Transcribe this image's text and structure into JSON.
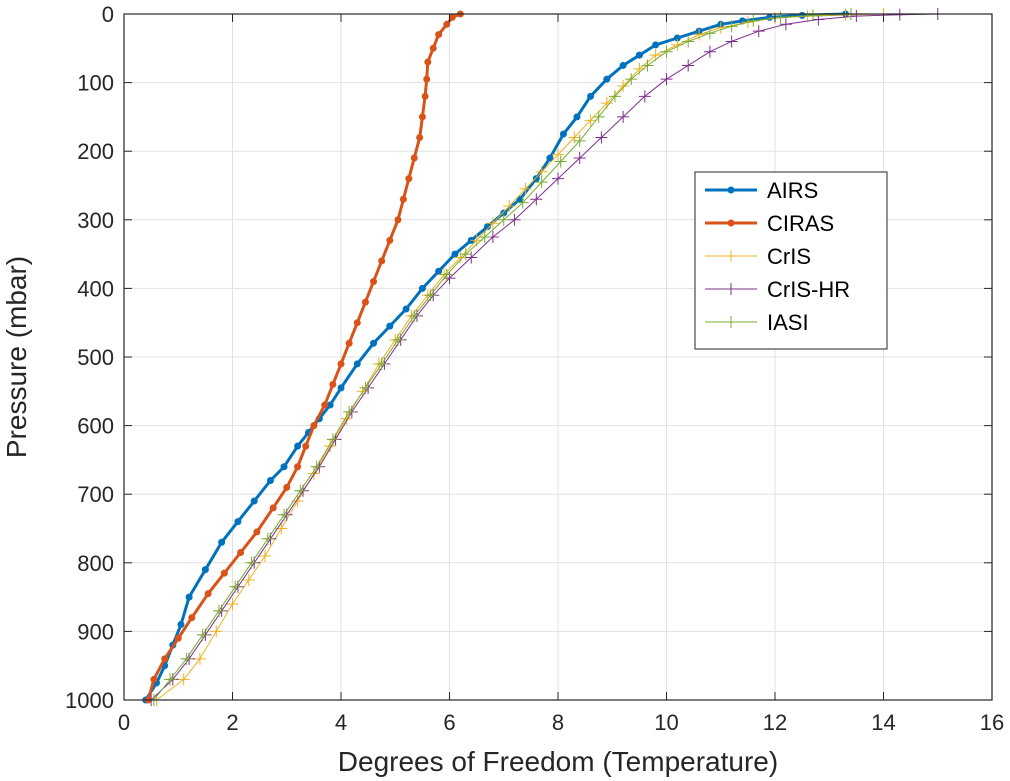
{
  "chart_data": {
    "type": "line",
    "xlabel": "Degrees of Freedom (Temperature)",
    "ylabel": "Pressure (mbar)",
    "xlim": [
      0,
      16
    ],
    "ylim": [
      0,
      1000
    ],
    "y_reversed": true,
    "xticks": [
      0,
      2,
      4,
      6,
      8,
      10,
      12,
      14,
      16
    ],
    "yticks": [
      0,
      100,
      200,
      300,
      400,
      500,
      600,
      700,
      800,
      900,
      1000
    ],
    "grid": true,
    "legend_position": "right",
    "series": [
      {
        "name": "AIRS",
        "color": "#0072BD",
        "marker": "dot",
        "points": [
          [
            0.4,
            1000
          ],
          [
            0.6,
            975
          ],
          [
            0.75,
            950
          ],
          [
            0.9,
            920
          ],
          [
            1.05,
            890
          ],
          [
            1.2,
            850
          ],
          [
            1.5,
            810
          ],
          [
            1.8,
            770
          ],
          [
            2.1,
            740
          ],
          [
            2.4,
            710
          ],
          [
            2.7,
            680
          ],
          [
            2.95,
            660
          ],
          [
            3.2,
            630
          ],
          [
            3.4,
            610
          ],
          [
            3.6,
            590
          ],
          [
            3.8,
            570
          ],
          [
            4.0,
            545
          ],
          [
            4.3,
            510
          ],
          [
            4.6,
            480
          ],
          [
            4.9,
            455
          ],
          [
            5.2,
            430
          ],
          [
            5.5,
            400
          ],
          [
            5.8,
            375
          ],
          [
            6.1,
            350
          ],
          [
            6.4,
            330
          ],
          [
            6.7,
            310
          ],
          [
            7.0,
            290
          ],
          [
            7.3,
            270
          ],
          [
            7.6,
            240
          ],
          [
            7.85,
            210
          ],
          [
            8.1,
            175
          ],
          [
            8.35,
            150
          ],
          [
            8.6,
            120
          ],
          [
            8.9,
            95
          ],
          [
            9.2,
            75
          ],
          [
            9.5,
            60
          ],
          [
            9.8,
            45
          ],
          [
            10.2,
            35
          ],
          [
            10.6,
            25
          ],
          [
            11.0,
            15
          ],
          [
            11.4,
            10
          ],
          [
            11.9,
            5
          ],
          [
            12.5,
            2
          ],
          [
            13.3,
            0
          ]
        ]
      },
      {
        "name": "CIRAS",
        "color": "#D95319",
        "marker": "dot",
        "points": [
          [
            0.45,
            1000
          ],
          [
            0.55,
            970
          ],
          [
            0.75,
            940
          ],
          [
            1.0,
            910
          ],
          [
            1.25,
            880
          ],
          [
            1.55,
            845
          ],
          [
            1.85,
            815
          ],
          [
            2.15,
            785
          ],
          [
            2.45,
            755
          ],
          [
            2.75,
            720
          ],
          [
            3.0,
            690
          ],
          [
            3.2,
            660
          ],
          [
            3.35,
            630
          ],
          [
            3.5,
            600
          ],
          [
            3.7,
            570
          ],
          [
            3.85,
            540
          ],
          [
            4.0,
            510
          ],
          [
            4.15,
            480
          ],
          [
            4.3,
            450
          ],
          [
            4.45,
            420
          ],
          [
            4.6,
            390
          ],
          [
            4.75,
            360
          ],
          [
            4.9,
            330
          ],
          [
            5.05,
            300
          ],
          [
            5.15,
            270
          ],
          [
            5.25,
            240
          ],
          [
            5.35,
            210
          ],
          [
            5.45,
            180
          ],
          [
            5.5,
            150
          ],
          [
            5.55,
            120
          ],
          [
            5.58,
            95
          ],
          [
            5.6,
            70
          ],
          [
            5.7,
            50
          ],
          [
            5.8,
            30
          ],
          [
            5.95,
            15
          ],
          [
            6.05,
            5
          ],
          [
            6.2,
            0
          ]
        ]
      },
      {
        "name": "CrIS",
        "color": "#EDB120",
        "marker": "plus",
        "points": [
          [
            0.6,
            1000
          ],
          [
            1.1,
            970
          ],
          [
            1.4,
            940
          ],
          [
            1.7,
            900
          ],
          [
            2.0,
            860
          ],
          [
            2.3,
            825
          ],
          [
            2.6,
            790
          ],
          [
            2.9,
            750
          ],
          [
            3.2,
            710
          ],
          [
            3.5,
            670
          ],
          [
            3.8,
            630
          ],
          [
            4.1,
            590
          ],
          [
            4.4,
            550
          ],
          [
            4.7,
            510
          ],
          [
            5.0,
            475
          ],
          [
            5.3,
            440
          ],
          [
            5.6,
            410
          ],
          [
            5.9,
            380
          ],
          [
            6.2,
            355
          ],
          [
            6.5,
            330
          ],
          [
            6.8,
            305
          ],
          [
            7.1,
            280
          ],
          [
            7.4,
            255
          ],
          [
            7.7,
            230
          ],
          [
            8.0,
            205
          ],
          [
            8.3,
            180
          ],
          [
            8.6,
            155
          ],
          [
            8.9,
            130
          ],
          [
            9.2,
            105
          ],
          [
            9.5,
            80
          ],
          [
            9.8,
            60
          ],
          [
            10.2,
            45
          ],
          [
            10.6,
            30
          ],
          [
            11.0,
            20
          ],
          [
            11.5,
            12
          ],
          [
            12.0,
            6
          ],
          [
            12.6,
            3
          ],
          [
            13.3,
            1
          ],
          [
            14.0,
            0
          ]
        ]
      },
      {
        "name": "CrIS-HR",
        "color": "#7E2F8E",
        "marker": "plus",
        "points": [
          [
            0.5,
            1000
          ],
          [
            0.9,
            970
          ],
          [
            1.2,
            940
          ],
          [
            1.5,
            905
          ],
          [
            1.8,
            870
          ],
          [
            2.1,
            835
          ],
          [
            2.4,
            800
          ],
          [
            2.7,
            765
          ],
          [
            3.0,
            730
          ],
          [
            3.3,
            695
          ],
          [
            3.6,
            660
          ],
          [
            3.9,
            620
          ],
          [
            4.2,
            580
          ],
          [
            4.5,
            545
          ],
          [
            4.8,
            510
          ],
          [
            5.1,
            475
          ],
          [
            5.4,
            440
          ],
          [
            5.7,
            410
          ],
          [
            6.0,
            385
          ],
          [
            6.4,
            355
          ],
          [
            6.8,
            325
          ],
          [
            7.2,
            300
          ],
          [
            7.6,
            270
          ],
          [
            8.0,
            240
          ],
          [
            8.4,
            210
          ],
          [
            8.8,
            180
          ],
          [
            9.2,
            150
          ],
          [
            9.6,
            120
          ],
          [
            10.0,
            95
          ],
          [
            10.4,
            75
          ],
          [
            10.8,
            55
          ],
          [
            11.2,
            40
          ],
          [
            11.7,
            25
          ],
          [
            12.2,
            15
          ],
          [
            12.8,
            8
          ],
          [
            13.5,
            3
          ],
          [
            14.3,
            1
          ],
          [
            15.0,
            0
          ]
        ]
      },
      {
        "name": "IASI",
        "color": "#77AC30",
        "marker": "plus",
        "points": [
          [
            0.55,
            1000
          ],
          [
            0.85,
            970
          ],
          [
            1.15,
            940
          ],
          [
            1.45,
            905
          ],
          [
            1.75,
            870
          ],
          [
            2.05,
            835
          ],
          [
            2.35,
            800
          ],
          [
            2.65,
            765
          ],
          [
            2.95,
            730
          ],
          [
            3.25,
            695
          ],
          [
            3.55,
            660
          ],
          [
            3.85,
            620
          ],
          [
            4.15,
            580
          ],
          [
            4.45,
            545
          ],
          [
            4.75,
            510
          ],
          [
            5.05,
            475
          ],
          [
            5.35,
            440
          ],
          [
            5.65,
            410
          ],
          [
            5.95,
            380
          ],
          [
            6.3,
            350
          ],
          [
            6.65,
            325
          ],
          [
            7.0,
            300
          ],
          [
            7.35,
            275
          ],
          [
            7.7,
            245
          ],
          [
            8.05,
            215
          ],
          [
            8.4,
            185
          ],
          [
            8.75,
            150
          ],
          [
            9.05,
            120
          ],
          [
            9.35,
            95
          ],
          [
            9.65,
            75
          ],
          [
            10.0,
            55
          ],
          [
            10.4,
            40
          ],
          [
            10.8,
            28
          ],
          [
            11.2,
            18
          ],
          [
            11.6,
            10
          ],
          [
            12.1,
            5
          ],
          [
            12.7,
            2
          ],
          [
            13.4,
            0
          ]
        ]
      }
    ]
  }
}
